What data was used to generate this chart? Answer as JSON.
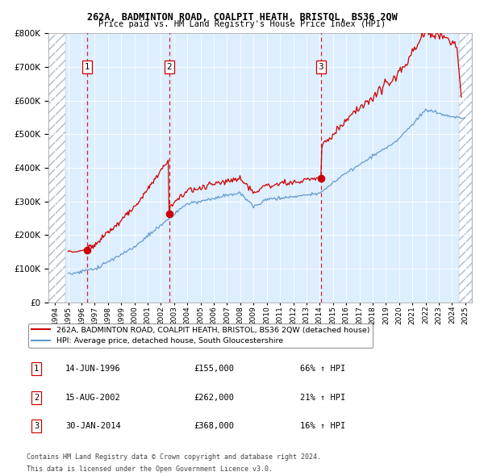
{
  "title": "262A, BADMINTON ROAD, COALPIT HEATH, BRISTOL, BS36 2QW",
  "subtitle": "Price paid vs. HM Land Registry's House Price Index (HPI)",
  "legend_line1": "262A, BADMINTON ROAD, COALPIT HEATH, BRISTOL, BS36 2QW (detached house)",
  "legend_line2": "HPI: Average price, detached house, South Gloucestershire",
  "sales": [
    {
      "num": 1,
      "date_label": "14-JUN-1996",
      "date_x": 1996.45,
      "price": 155000,
      "pct": "66%",
      "dir": "↑"
    },
    {
      "num": 2,
      "date_label": "15-AUG-2002",
      "date_x": 2002.62,
      "price": 262000,
      "pct": "21%",
      "dir": "↑"
    },
    {
      "num": 3,
      "date_label": "30-JAN-2014",
      "date_x": 2014.08,
      "price": 368000,
      "pct": "16%",
      "dir": "↑"
    }
  ],
  "footer1": "Contains HM Land Registry data © Crown copyright and database right 2024.",
  "footer2": "This data is licensed under the Open Government Licence v3.0.",
  "ylim": [
    0,
    800000
  ],
  "xlim": [
    1993.5,
    2025.5
  ],
  "hatch_left_end": 1994.75,
  "hatch_right_start": 2024.5,
  "property_color": "#cc0000",
  "hpi_color": "#6699cc",
  "background_color": "#ddeeff",
  "sale_marker_color": "#cc0000",
  "dashed_line_color": "#cc0000",
  "num_box_color": "#cc0000"
}
